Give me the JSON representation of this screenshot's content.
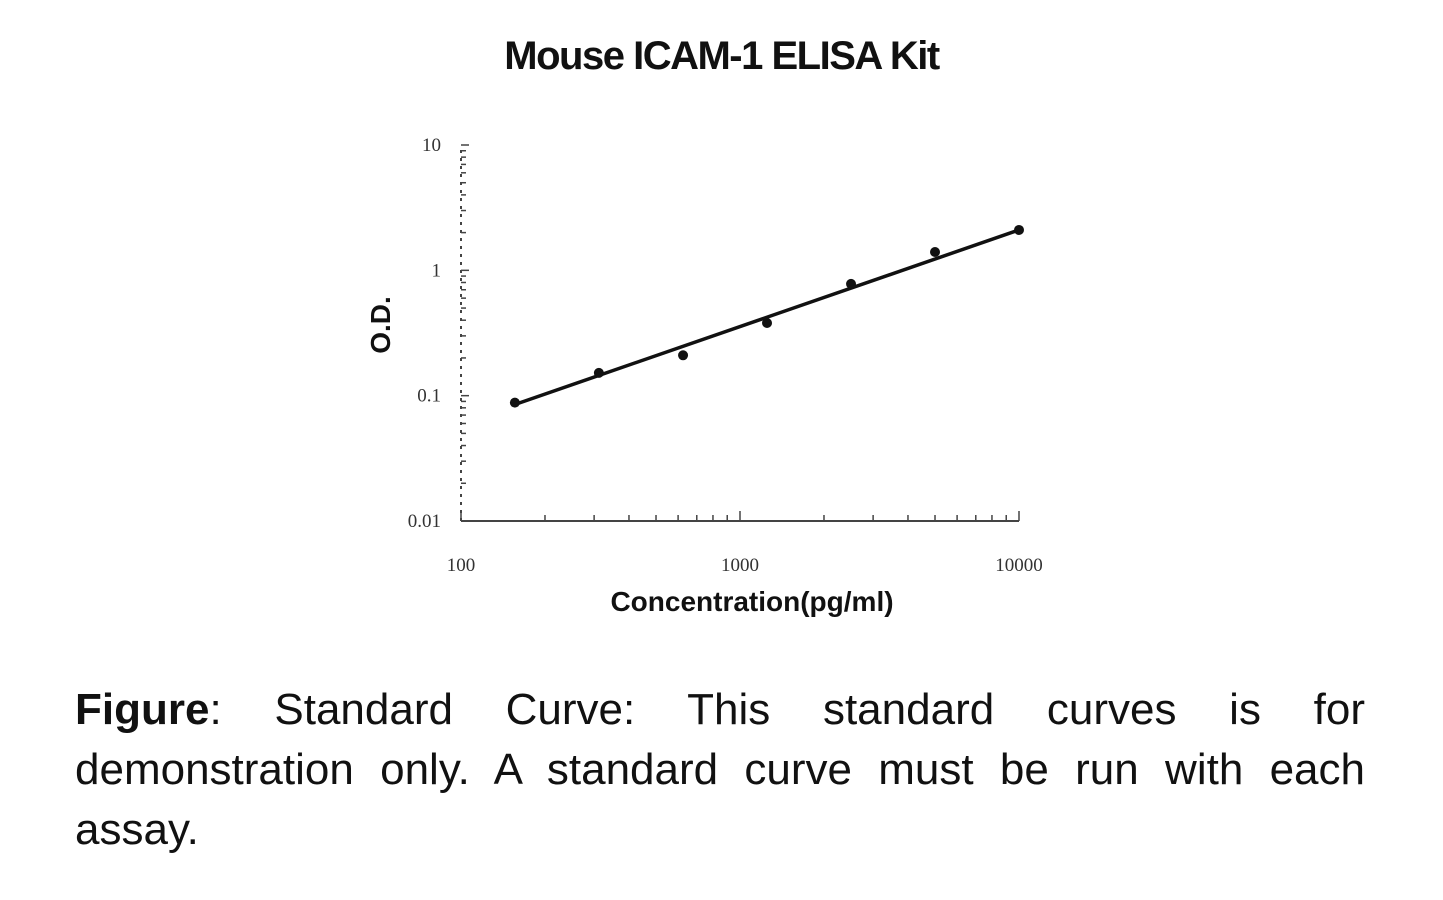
{
  "chart_data": {
    "type": "scatter",
    "title": "Mouse ICAM-1 ELISA Kit",
    "xlabel": "Concentration(pg/ml)",
    "ylabel": "O.D.",
    "xscale": "log",
    "yscale": "log",
    "xlim": [
      100,
      10000
    ],
    "ylim": [
      0.01,
      10
    ],
    "xticks": [
      "100",
      "1000",
      "10000"
    ],
    "yticks": [
      "10",
      "1",
      "0.1",
      "0.01"
    ],
    "grid": false,
    "legend": "none",
    "points": [
      {
        "x": 156,
        "y": 0.088
      },
      {
        "x": 312,
        "y": 0.152
      },
      {
        "x": 625,
        "y": 0.21
      },
      {
        "x": 1250,
        "y": 0.38
      },
      {
        "x": 2500,
        "y": 0.78
      },
      {
        "x": 5000,
        "y": 1.4
      },
      {
        "x": 10000,
        "y": 2.1
      }
    ],
    "fit_line": [
      {
        "x": 156,
        "y": 0.085
      },
      {
        "x": 10000,
        "y": 2.1
      }
    ],
    "colors": {
      "marks": "#111111",
      "axis": "#444444"
    }
  },
  "caption": {
    "lead": "Figure",
    "text": ": Standard Curve: This standard curves is for demonstration only. A standard curve must be run with each assay."
  }
}
